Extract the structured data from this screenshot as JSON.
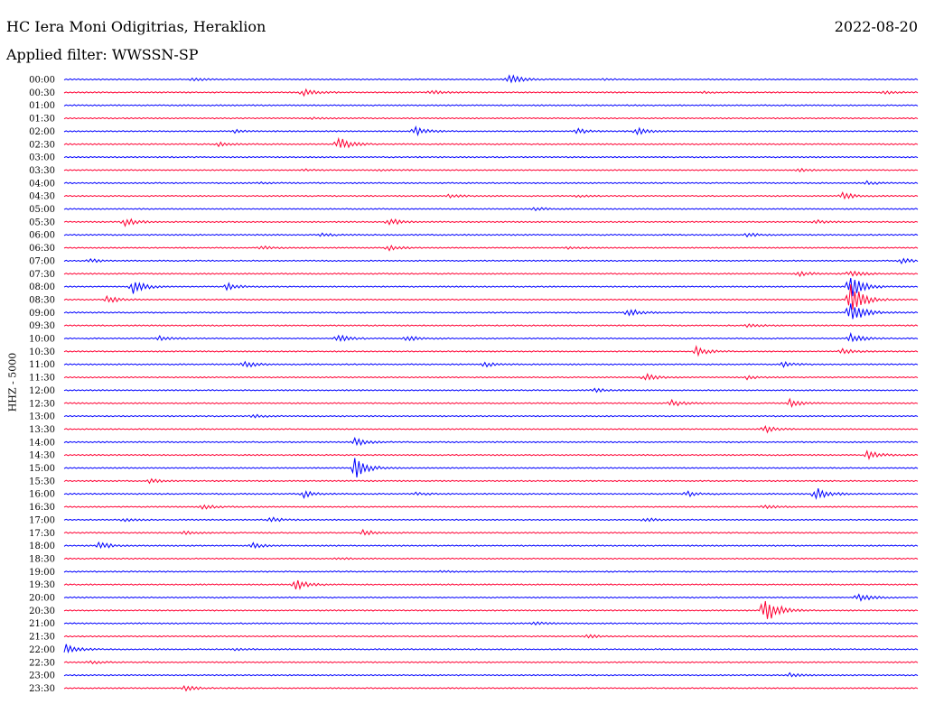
{
  "header": {
    "station": "HC Iera Moni Odigitrias, Heraklion",
    "date": "2022-08-20",
    "filter": "Applied filter: WWSSN-SP"
  },
  "chart_data": {
    "type": "line",
    "title": "HC Iera Moni Odigitrias, Heraklion",
    "ylabel": "HHZ - 5000",
    "colors": [
      "#0000ff",
      "#ff0033"
    ],
    "rows": [
      {
        "time": "00:00",
        "events": [
          {
            "t": 0.15,
            "a": 2
          },
          {
            "t": 0.52,
            "a": 6
          },
          {
            "t": 0.63,
            "a": 1
          }
        ]
      },
      {
        "time": "00:30",
        "events": [
          {
            "t": 0.28,
            "a": 4
          },
          {
            "t": 0.43,
            "a": 2
          },
          {
            "t": 0.75,
            "a": 1
          },
          {
            "t": 0.96,
            "a": 2
          }
        ]
      },
      {
        "time": "01:00",
        "events": []
      },
      {
        "time": "01:30",
        "events": [
          {
            "t": 0.29,
            "a": 1
          }
        ]
      },
      {
        "time": "02:00",
        "events": [
          {
            "t": 0.2,
            "a": 2
          },
          {
            "t": 0.41,
            "a": 5
          },
          {
            "t": 0.6,
            "a": 3
          },
          {
            "t": 0.67,
            "a": 4
          }
        ]
      },
      {
        "time": "02:30",
        "events": [
          {
            "t": 0.18,
            "a": 2
          },
          {
            "t": 0.32,
            "a": 9
          }
        ]
      },
      {
        "time": "03:00",
        "events": []
      },
      {
        "time": "03:30",
        "events": [
          {
            "t": 0.28,
            "a": 1
          },
          {
            "t": 0.37,
            "a": 1
          },
          {
            "t": 0.86,
            "a": 2
          }
        ]
      },
      {
        "time": "04:00",
        "events": [
          {
            "t": 0.23,
            "a": 1
          },
          {
            "t": 0.94,
            "a": 2
          }
        ]
      },
      {
        "time": "04:30",
        "events": [
          {
            "t": 0.45,
            "a": 2
          },
          {
            "t": 0.6,
            "a": 1
          },
          {
            "t": 0.91,
            "a": 4
          }
        ]
      },
      {
        "time": "05:00",
        "events": [
          {
            "t": 0.55,
            "a": 2
          }
        ]
      },
      {
        "time": "05:30",
        "events": [
          {
            "t": 0.07,
            "a": 5
          },
          {
            "t": 0.38,
            "a": 4
          },
          {
            "t": 0.88,
            "a": 2
          }
        ]
      },
      {
        "time": "06:00",
        "events": [
          {
            "t": 0.3,
            "a": 2
          },
          {
            "t": 0.8,
            "a": 2
          }
        ]
      },
      {
        "time": "06:30",
        "events": [
          {
            "t": 0.23,
            "a": 2
          },
          {
            "t": 0.38,
            "a": 3
          },
          {
            "t": 0.59,
            "a": 1
          }
        ]
      },
      {
        "time": "07:00",
        "events": [
          {
            "t": 0.03,
            "a": 2
          },
          {
            "t": 0.98,
            "a": 3
          }
        ]
      },
      {
        "time": "07:30",
        "events": [
          {
            "t": 0.86,
            "a": 3
          },
          {
            "t": 0.92,
            "a": 4
          }
        ]
      },
      {
        "time": "08:00",
        "events": [
          {
            "t": 0.08,
            "a": 8
          },
          {
            "t": 0.19,
            "a": 4
          },
          {
            "t": 0.92,
            "a": 18
          }
        ]
      },
      {
        "time": "08:30",
        "events": [
          {
            "t": 0.05,
            "a": 4
          },
          {
            "t": 0.92,
            "a": 22
          }
        ]
      },
      {
        "time": "09:00",
        "events": [
          {
            "t": 0.66,
            "a": 5
          },
          {
            "t": 0.92,
            "a": 16
          }
        ]
      },
      {
        "time": "09:30",
        "events": [
          {
            "t": 0.8,
            "a": 2
          }
        ]
      },
      {
        "time": "10:00",
        "events": [
          {
            "t": 0.11,
            "a": 3
          },
          {
            "t": 0.32,
            "a": 4
          },
          {
            "t": 0.4,
            "a": 3
          },
          {
            "t": 0.92,
            "a": 6
          }
        ]
      },
      {
        "time": "10:30",
        "events": [
          {
            "t": 0.74,
            "a": 5
          },
          {
            "t": 0.91,
            "a": 3
          }
        ]
      },
      {
        "time": "11:00",
        "events": [
          {
            "t": 0.21,
            "a": 4
          },
          {
            "t": 0.49,
            "a": 3
          },
          {
            "t": 0.84,
            "a": 3
          }
        ]
      },
      {
        "time": "11:30",
        "events": [
          {
            "t": 0.68,
            "a": 4
          },
          {
            "t": 0.8,
            "a": 2
          }
        ]
      },
      {
        "time": "12:00",
        "events": [
          {
            "t": 0.62,
            "a": 2
          }
        ]
      },
      {
        "time": "12:30",
        "events": [
          {
            "t": 0.71,
            "a": 4
          },
          {
            "t": 0.85,
            "a": 4
          }
        ]
      },
      {
        "time": "13:00",
        "events": [
          {
            "t": 0.22,
            "a": 2
          }
        ]
      },
      {
        "time": "13:30",
        "events": [
          {
            "t": 0.82,
            "a": 4
          }
        ]
      },
      {
        "time": "14:00",
        "events": [
          {
            "t": 0.34,
            "a": 5
          }
        ]
      },
      {
        "time": "14:30",
        "events": [
          {
            "t": 0.94,
            "a": 5
          }
        ]
      },
      {
        "time": "15:00",
        "events": [
          {
            "t": 0.34,
            "a": 14
          }
        ]
      },
      {
        "time": "15:30",
        "events": [
          {
            "t": 0.1,
            "a": 2
          }
        ]
      },
      {
        "time": "16:00",
        "events": [
          {
            "t": 0.28,
            "a": 4
          },
          {
            "t": 0.41,
            "a": 2
          },
          {
            "t": 0.73,
            "a": 3
          },
          {
            "t": 0.88,
            "a": 8
          }
        ]
      },
      {
        "time": "16:30",
        "events": [
          {
            "t": 0.16,
            "a": 3
          },
          {
            "t": 0.82,
            "a": 2
          }
        ]
      },
      {
        "time": "17:00",
        "events": [
          {
            "t": 0.07,
            "a": 2
          },
          {
            "t": 0.24,
            "a": 3
          },
          {
            "t": 0.68,
            "a": 2
          }
        ]
      },
      {
        "time": "17:30",
        "events": [
          {
            "t": 0.14,
            "a": 2
          },
          {
            "t": 0.35,
            "a": 3
          }
        ]
      },
      {
        "time": "18:00",
        "events": [
          {
            "t": 0.04,
            "a": 4
          },
          {
            "t": 0.22,
            "a": 3
          }
        ]
      },
      {
        "time": "18:30",
        "events": [
          {
            "t": 0.32,
            "a": 1
          }
        ]
      },
      {
        "time": "19:00",
        "events": [
          {
            "t": 0.44,
            "a": 1
          }
        ]
      },
      {
        "time": "19:30",
        "events": [
          {
            "t": 0.27,
            "a": 7
          }
        ]
      },
      {
        "time": "20:00",
        "events": [
          {
            "t": 0.93,
            "a": 5
          }
        ]
      },
      {
        "time": "20:30",
        "events": [
          {
            "t": 0.82,
            "a": 20
          }
        ]
      },
      {
        "time": "21:00",
        "events": [
          {
            "t": 0.55,
            "a": 2
          }
        ]
      },
      {
        "time": "21:30",
        "events": [
          {
            "t": 0.61,
            "a": 2
          }
        ]
      },
      {
        "time": "22:00",
        "events": [
          {
            "t": 0.0,
            "a": 6
          },
          {
            "t": 0.2,
            "a": 1
          }
        ]
      },
      {
        "time": "22:30",
        "events": [
          {
            "t": 0.03,
            "a": 2
          }
        ]
      },
      {
        "time": "23:00",
        "events": [
          {
            "t": 0.85,
            "a": 2
          }
        ]
      },
      {
        "time": "23:30",
        "events": [
          {
            "t": 0.14,
            "a": 3
          }
        ]
      }
    ]
  }
}
